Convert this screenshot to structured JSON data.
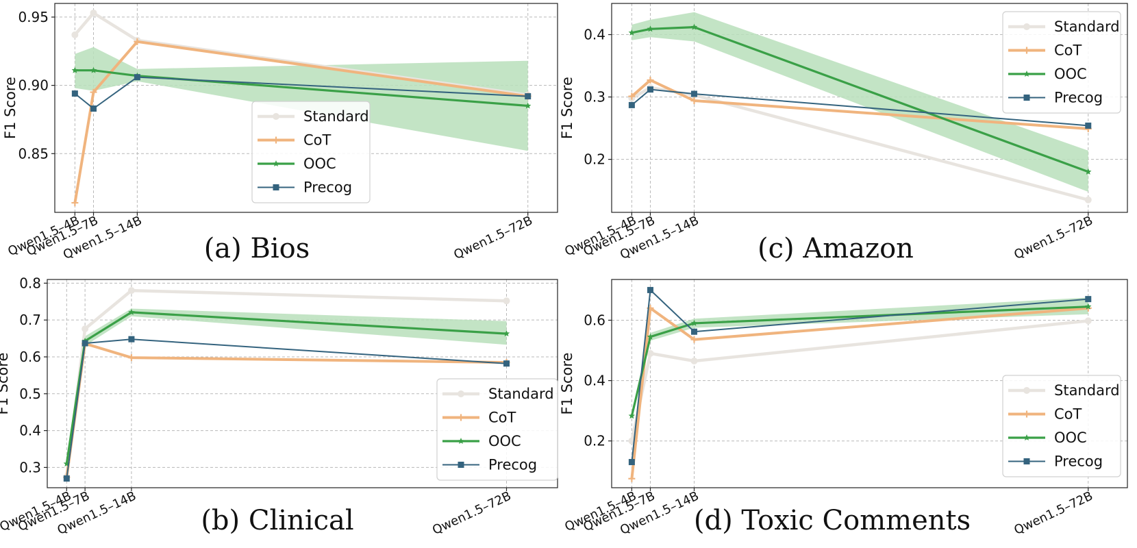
{
  "chart_data": [
    {
      "id": "bios",
      "type": "line",
      "caption": "(a) Bios",
      "ylabel": "F1 Score",
      "xlabel": "",
      "categories": [
        "Qwen1.5–4B",
        "Qwen1.5–7B",
        "Qwen1.5–14B",
        "Qwen1.5–72B"
      ],
      "x": [
        4,
        7,
        14,
        72
      ],
      "ylim": [
        0.807,
        0.96
      ],
      "yticks": [
        0.85,
        0.9,
        0.95
      ],
      "ytick_labels": [
        "0.85",
        "0.90",
        "0.95"
      ],
      "grid": true,
      "legend_position": "center",
      "series": [
        {
          "name": "Standard",
          "values": [
            0.937,
            0.953,
            0.933,
            0.893
          ]
        },
        {
          "name": "CoT",
          "values": [
            0.814,
            0.895,
            0.932,
            0.892
          ]
        },
        {
          "name": "OOC",
          "values": [
            0.911,
            0.911,
            0.907,
            0.885
          ],
          "band_low": [
            0.898,
            0.896,
            0.903,
            0.852
          ],
          "band_high": [
            0.923,
            0.928,
            0.912,
            0.918
          ]
        },
        {
          "name": "Precog",
          "values": [
            0.894,
            0.883,
            0.906,
            0.892
          ]
        }
      ]
    },
    {
      "id": "amazon",
      "type": "line",
      "caption": "(c) Amazon",
      "ylabel": "F1 Score",
      "xlabel": "",
      "categories": [
        "Qwen1.5–4B",
        "Qwen1.5–7B",
        "Qwen1.5–14B",
        "Qwen1.5–72B"
      ],
      "x": [
        4,
        7,
        14,
        72
      ],
      "ylim": [
        0.115,
        0.45
      ],
      "yticks": [
        0.2,
        0.3,
        0.4
      ],
      "ytick_labels": [
        "0.2",
        "0.3",
        "0.4"
      ],
      "grid": true,
      "legend_position": "top-right",
      "series": [
        {
          "name": "Standard",
          "values": [
            0.298,
            0.315,
            0.303,
            0.135
          ]
        },
        {
          "name": "CoT",
          "values": [
            0.301,
            0.327,
            0.294,
            0.249
          ]
        },
        {
          "name": "OOC",
          "values": [
            0.403,
            0.409,
            0.412,
            0.18
          ],
          "band_low": [
            0.391,
            0.396,
            0.389,
            0.148
          ],
          "band_high": [
            0.416,
            0.424,
            0.436,
            0.214
          ]
        },
        {
          "name": "Precog",
          "values": [
            0.287,
            0.312,
            0.305,
            0.254
          ]
        }
      ]
    },
    {
      "id": "clinical",
      "type": "line",
      "caption": "(b) Clinical",
      "ylabel": "F1 Score",
      "xlabel": "",
      "categories": [
        "Qwen1.5–4B",
        "Qwen1.5–7B",
        "Qwen1.5–14B",
        "Qwen1.5–72B"
      ],
      "x": [
        4,
        7,
        14,
        72
      ],
      "ylim": [
        0.245,
        0.81
      ],
      "yticks": [
        0.3,
        0.4,
        0.5,
        0.6,
        0.7,
        0.8
      ],
      "ytick_labels": [
        "0.3",
        "0.4",
        "0.5",
        "0.6",
        "0.7",
        "0.8"
      ],
      "grid": true,
      "legend_position": "bottom-right",
      "series": [
        {
          "name": "Standard",
          "values": [
            0.275,
            0.676,
            0.78,
            0.752
          ]
        },
        {
          "name": "CoT",
          "values": [
            0.273,
            0.636,
            0.598,
            0.585
          ]
        },
        {
          "name": "OOC",
          "values": [
            0.31,
            0.643,
            0.721,
            0.663
          ],
          "band_low": [
            0.3,
            0.63,
            0.71,
            0.633
          ],
          "band_high": [
            0.32,
            0.656,
            0.731,
            0.697
          ]
        },
        {
          "name": "Precog",
          "values": [
            0.27,
            0.637,
            0.648,
            0.582
          ]
        }
      ]
    },
    {
      "id": "toxic",
      "type": "line",
      "caption": "(d) Toxic Comments",
      "ylabel": "F1 Score",
      "xlabel": "",
      "categories": [
        "Qwen1.5–4B",
        "Qwen1.5–7B",
        "Qwen1.5–14B",
        "Qwen1.5–72B"
      ],
      "x": [
        4,
        7,
        14,
        72
      ],
      "ylim": [
        0.045,
        0.735
      ],
      "yticks": [
        0.2,
        0.4,
        0.6
      ],
      "ytick_labels": [
        "0.2",
        "0.4",
        "0.6"
      ],
      "grid": true,
      "legend_position": "bottom-right",
      "series": [
        {
          "name": "Standard",
          "values": [
            0.2,
            0.49,
            0.465,
            0.598
          ]
        },
        {
          "name": "CoT",
          "values": [
            0.075,
            0.64,
            0.536,
            0.64
          ]
        },
        {
          "name": "OOC",
          "values": [
            0.283,
            0.545,
            0.59,
            0.645
          ],
          "band_low": [
            0.268,
            0.532,
            0.575,
            0.62
          ],
          "band_high": [
            0.298,
            0.558,
            0.605,
            0.675
          ]
        },
        {
          "name": "Precog",
          "values": [
            0.13,
            0.7,
            0.562,
            0.67
          ]
        }
      ]
    }
  ],
  "styles": {
    "Standard": {
      "color": "#e8e4df",
      "marker": "circle"
    },
    "CoT": {
      "color": "#f0b47e",
      "marker": "plus"
    },
    "OOC": {
      "color": "#3aa047",
      "marker": "star",
      "band_color": "#b9dfbb"
    },
    "Precog": {
      "color": "#34637e",
      "marker": "square"
    }
  }
}
